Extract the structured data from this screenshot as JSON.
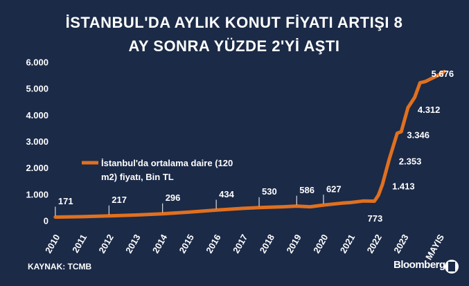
{
  "chart_data": {
    "type": "line",
    "title": "İSTANBUL'DA AYLIK KONUT FİYATI ARTIŞI 8 AY SONRA YÜZDE 2'Yİ AŞTI",
    "source": "KAYNAK: TCMB",
    "brand": "Bloomberg",
    "x": [
      2010.0,
      2011.0,
      2012.0,
      2013.0,
      2014.0,
      2015.0,
      2016.0,
      2017.0,
      2017.6,
      2018.5,
      2019.0,
      2019.5,
      2020.0,
      2020.7,
      2021.0,
      2021.5,
      2021.9,
      2022.05,
      2022.2,
      2022.45,
      2022.75,
      2022.9,
      2023.15,
      2023.4,
      2023.6,
      2023.8,
      2024.0,
      2024.3,
      2024.5
    ],
    "series": [
      {
        "name": "İstanbul'da ortalama daire (120 m2) fiyatı, Bin TL",
        "color": "#e0701f",
        "values": [
          171,
          185,
          217,
          250,
          296,
          360,
          434,
          500,
          530,
          560,
          586,
          560,
          627,
          700,
          720,
          780,
          773,
          1000,
          1413,
          2353,
          3346,
          3400,
          4312,
          4700,
          5250,
          5300,
          5400,
          5550,
          5676
        ],
        "value_labels": [
          "171",
          null,
          "217",
          null,
          "296",
          null,
          "434",
          null,
          "530",
          null,
          "586",
          null,
          "627",
          null,
          null,
          null,
          "773",
          null,
          "1.413",
          "2.353",
          "3.346",
          null,
          "4.312",
          null,
          null,
          null,
          null,
          null,
          "5.676"
        ]
      }
    ],
    "xlim": [
      2009.9,
      2024.6
    ],
    "xticks": [
      2010,
      2011,
      2012,
      2013,
      2014,
      2015,
      2016,
      2017,
      2018,
      2019,
      2020,
      2021,
      2022,
      2023,
      {
        "value": 2024.33,
        "label": "MAYIS"
      }
    ],
    "ylim": [
      0,
      6000
    ],
    "yticks": [
      {
        "value": 0,
        "label": "0"
      },
      {
        "value": 1000,
        "label": "1.000"
      },
      {
        "value": 2000,
        "label": "2.000"
      },
      {
        "value": 3000,
        "label": "3.000"
      },
      {
        "value": 4000,
        "label": "4.000"
      },
      {
        "value": 5000,
        "label": "5.000"
      },
      {
        "value": 6000,
        "label": "6.000"
      }
    ],
    "grid": false
  }
}
